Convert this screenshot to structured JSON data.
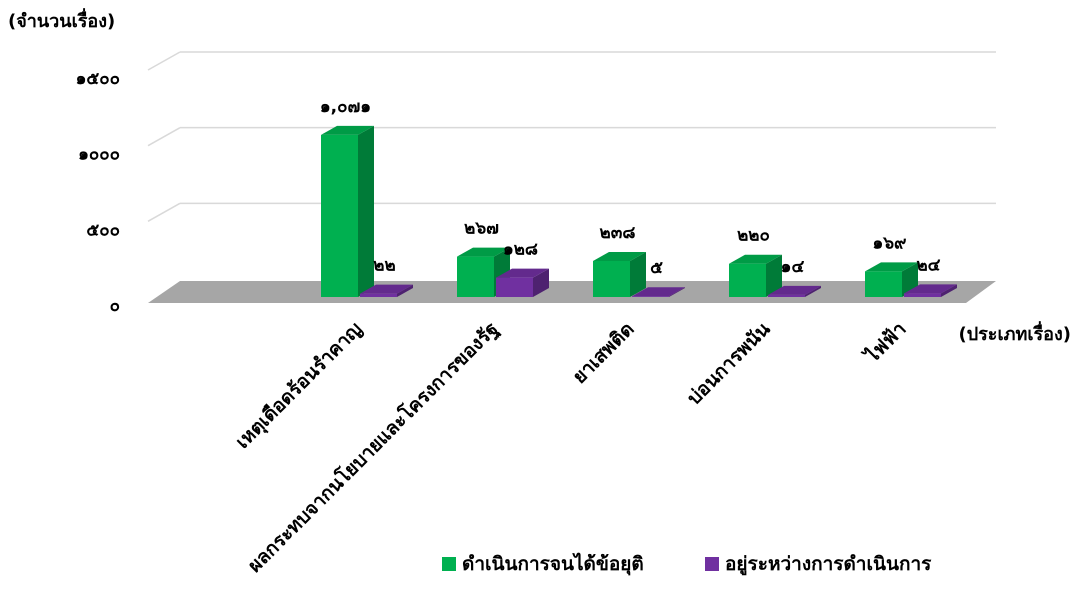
{
  "chart_data": {
    "type": "bar",
    "ylabel": "(จำนวนเรื่อง)",
    "xlabel": "(ประเภทเรื่อง)",
    "ylim": [
      0,
      1500
    ],
    "yticks": [
      0,
      500,
      1000,
      1500
    ],
    "ytick_labels": [
      "๐",
      "๕๐๐",
      "๑๐๐๐",
      "๑๕๐๐"
    ],
    "grid": true,
    "legend_position": "bottom",
    "categories": [
      "เหตุเดือดร้อนรำคาญ",
      "ผลกระทบจากนโยบายและโครงการของรัฐ",
      "ยาเสพติด",
      "บ่อนการพนัน",
      "ไฟฟ้า"
    ],
    "series": [
      {
        "name": "ดำเนินการจนได้ข้อยุติ",
        "color": "#00b050",
        "values": [
          1071,
          267,
          238,
          220,
          169
        ],
        "labels": [
          "๑,๐๗๑",
          "๒๖๗",
          "๒๓๘",
          "๒๒๐",
          "๑๖๙"
        ]
      },
      {
        "name": "อยู่ระหว่างการดำเนินการ",
        "color": "#7030a0",
        "values": [
          22,
          128,
          5,
          14,
          24
        ],
        "labels": [
          "๒๒",
          "๑๒๘",
          "๕",
          "๑๔",
          "๒๔"
        ]
      }
    ]
  }
}
